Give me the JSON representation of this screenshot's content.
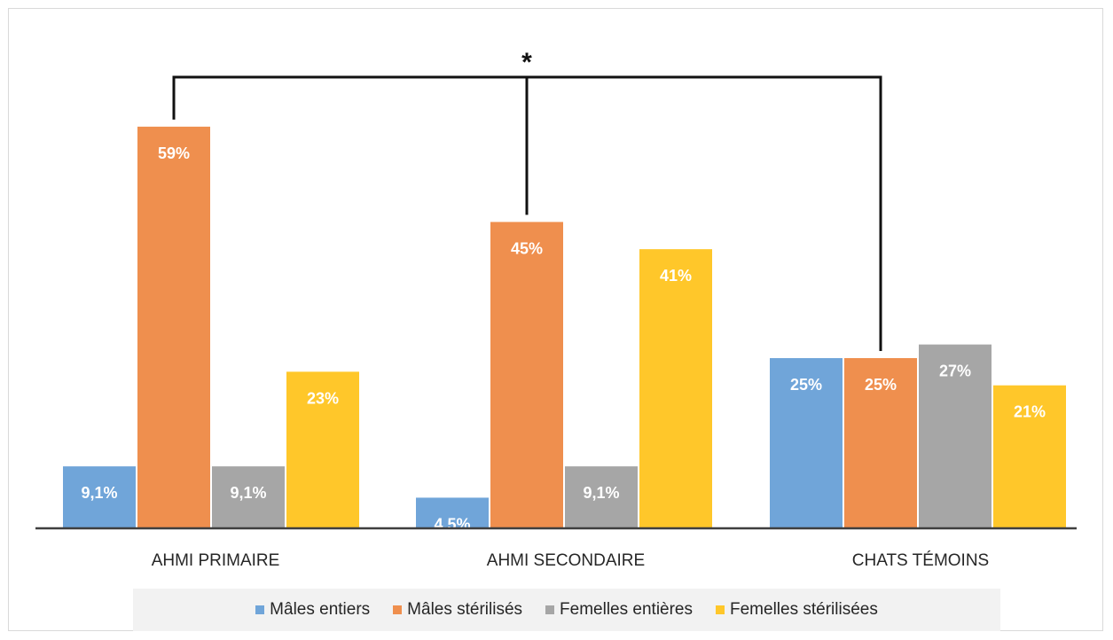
{
  "chart_data": {
    "type": "bar",
    "categories": [
      "AHMI PRIMAIRE",
      "AHMI SECONDAIRE",
      "CHATS TÉMOINS"
    ],
    "series": [
      {
        "name": "Mâles entiers",
        "color": "#70a5d9",
        "values": [
          9.1,
          4.5,
          25
        ]
      },
      {
        "name": "Mâles stérilisés",
        "color": "#ef8f4e",
        "values": [
          59,
          45,
          25
        ]
      },
      {
        "name": "Femelles entières",
        "color": "#a6a6a6",
        "values": [
          9.1,
          9.1,
          27
        ]
      },
      {
        "name": "Femelles stérilisées",
        "color": "#ffc72a",
        "values": [
          23,
          41,
          21
        ]
      }
    ],
    "data_labels": [
      [
        "9,1%",
        "4,5%",
        "25%"
      ],
      [
        "59%",
        "45%",
        "25%"
      ],
      [
        "9,1%",
        "9,1%",
        "27%"
      ],
      [
        "23%",
        "41%",
        "21%"
      ]
    ],
    "ylim": [
      0,
      65
    ],
    "grid": false,
    "legend_position": "bottom",
    "annotation": {
      "text": "*",
      "connects": [
        "AHMI PRIMAIRE",
        "AHMI SECONDAIRE",
        "CHATS TÉMOINS"
      ],
      "series": "Mâles stérilisés"
    }
  }
}
